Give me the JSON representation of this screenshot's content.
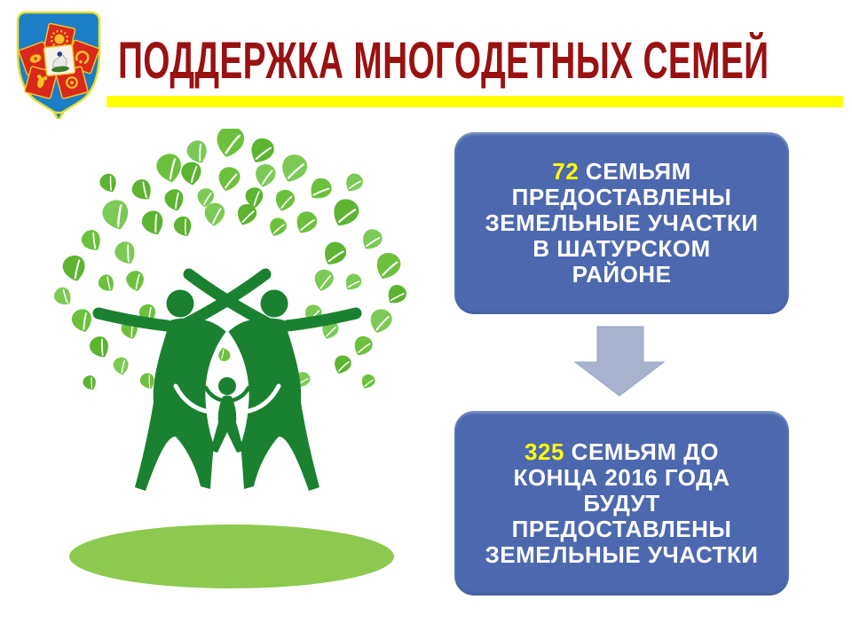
{
  "slide": {
    "title": "ПОДДЕРЖКА МНОГОДЕТНЫХ СЕМЕЙ"
  },
  "icons": {
    "emblem": "coat-of-arms",
    "tree": "family-tree",
    "arrow": "down-arrow"
  },
  "flow": {
    "box1": {
      "accent": "72",
      "first_rest": " СЕМЬЯМ",
      "line2": "ПРЕДОСТАВЛЕНЫ",
      "line3": "ЗЕМЕЛЬНЫЕ УЧАСТКИ",
      "line4": "В ШАТУРСКОМ",
      "line5": "РАЙОНЕ"
    },
    "box2": {
      "accent": "325",
      "first_rest": " СЕМЬЯМ ДО",
      "line2": "КОНЦА 2016 ГОДА",
      "line3": "БУДУТ",
      "line4": "ПРЕДОСТАВЛЕНЫ",
      "line5": "ЗЕМЕЛЬНЫЕ УЧАСТКИ"
    }
  },
  "colors": {
    "title": "#9a1111",
    "divider": "#ffff00",
    "box": "#4c68ae",
    "accent": "#ffff00",
    "arrow": "#a8b2cf",
    "figure": "#1a8130",
    "leaf": "#6cc13c",
    "leaf_alt": "#7cca55",
    "leaf_dark": "#5cb430",
    "shadow": "#8dc94f",
    "shield": "#1b7ec6",
    "shield_border": "#e6e032",
    "square": "#d8291a",
    "gold": "#f5c028"
  }
}
